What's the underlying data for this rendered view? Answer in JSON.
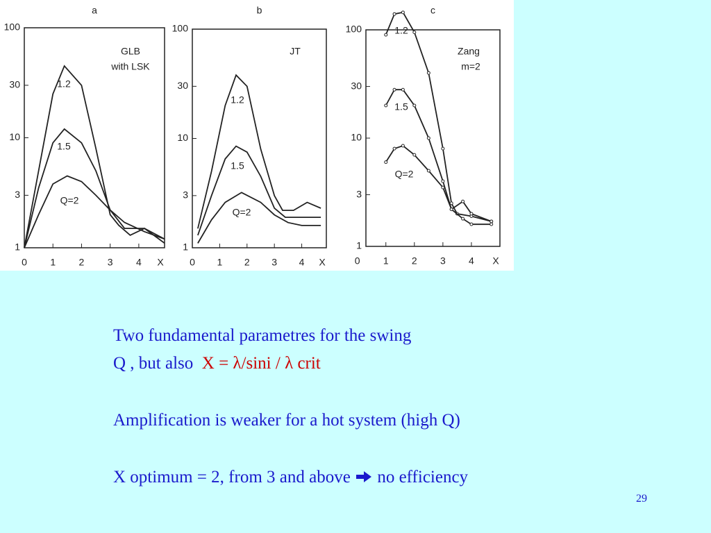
{
  "chart_data": [
    {
      "type": "line",
      "panel": "a",
      "annotations": [
        "GLB",
        "with LSK"
      ],
      "xlabel": "X",
      "log_y": true,
      "color": "#222222",
      "markers": false,
      "xlim": [
        0,
        4.9
      ],
      "xticks": [
        0,
        1,
        2,
        3,
        4
      ],
      "ylim": [
        1,
        100
      ],
      "yticks": [
        1,
        3,
        10,
        30,
        100
      ],
      "series": [
        {
          "name": "1.2",
          "x": [
            0,
            0.5,
            1,
            1.4,
            2,
            2.5,
            3,
            3.3,
            3.7,
            4.2,
            4.9
          ],
          "values": [
            1,
            5,
            25,
            45,
            30,
            8,
            2,
            1.6,
            1.3,
            1.5,
            1.1
          ]
        },
        {
          "name": "1.5",
          "x": [
            0,
            0.5,
            1,
            1.4,
            2,
            2.5,
            3,
            3.5,
            4.2,
            4.9
          ],
          "values": [
            1,
            3.5,
            9,
            12,
            9,
            5,
            2.2,
            1.5,
            1.5,
            1.2
          ]
        },
        {
          "name": "Q=2",
          "x": [
            0,
            0.5,
            1,
            1.5,
            2,
            2.5,
            3,
            3.5,
            4.2,
            4.9
          ],
          "values": [
            1,
            2,
            3.8,
            4.5,
            4,
            3,
            2.2,
            1.7,
            1.4,
            1.2
          ]
        }
      ]
    },
    {
      "type": "line",
      "panel": "b",
      "annotations": [
        "JT"
      ],
      "xlabel": "X",
      "log_y": true,
      "color": "#222222",
      "markers": false,
      "xlim": [
        0,
        4.9
      ],
      "xticks": [
        0,
        1,
        2,
        3,
        4
      ],
      "ylim": [
        1,
        100
      ],
      "yticks": [
        1,
        3,
        10,
        30,
        100
      ],
      "series": [
        {
          "name": "1.2",
          "x": [
            0.2,
            0.7,
            1.2,
            1.6,
            2,
            2.5,
            3,
            3.3,
            3.7,
            4.2,
            4.7
          ],
          "values": [
            1.5,
            5,
            20,
            38,
            30,
            8,
            3,
            2.2,
            2.2,
            2.6,
            2.3
          ]
        },
        {
          "name": "1.5",
          "x": [
            0.2,
            0.7,
            1.2,
            1.6,
            2,
            2.5,
            3,
            3.4,
            4,
            4.7
          ],
          "values": [
            1.3,
            3,
            6.5,
            8.5,
            7.5,
            4.5,
            2.3,
            1.9,
            1.9,
            1.9
          ]
        },
        {
          "name": "Q=2",
          "x": [
            0.2,
            0.7,
            1.2,
            1.8,
            2.5,
            3,
            3.5,
            4,
            4.7
          ],
          "values": [
            1.1,
            1.8,
            2.6,
            3.2,
            2.6,
            2,
            1.7,
            1.6,
            1.6
          ]
        }
      ]
    },
    {
      "type": "line",
      "panel": "c",
      "annotations": [
        "Zang",
        "m=2"
      ],
      "xlabel": "X",
      "log_y": true,
      "color": "#222222",
      "markers": true,
      "xlim": [
        0.3,
        5
      ],
      "xticks": [
        0,
        1,
        2,
        3,
        4
      ],
      "ylim": [
        1,
        100
      ],
      "yticks": [
        1,
        3,
        10,
        30,
        100
      ],
      "series": [
        {
          "name": "1.2",
          "x": [
            1,
            1.3,
            1.6,
            2,
            2.5,
            3,
            3.3,
            3.5,
            4,
            4.7
          ],
          "values": [
            90,
            140,
            145,
            95,
            40,
            8,
            2.5,
            2,
            1.9,
            1.7
          ]
        },
        {
          "name": "1.5",
          "x": [
            1,
            1.3,
            1.6,
            2,
            2.5,
            3,
            3.3,
            3.7,
            4,
            4.7
          ],
          "values": [
            20,
            28,
            28,
            20,
            10,
            4,
            2.2,
            2.6,
            2,
            1.7
          ]
        },
        {
          "name": "Q=2",
          "x": [
            1,
            1.3,
            1.6,
            2,
            2.5,
            3,
            3.3,
            3.7,
            4,
            4.7
          ],
          "values": [
            6,
            8,
            8.5,
            7,
            5,
            3.5,
            2.2,
            1.8,
            1.6,
            1.6
          ]
        }
      ]
    }
  ],
  "text": {
    "line1": "Two fundamental parametres for the swing",
    "line2a": "Q , but also",
    "line2b": "X = λ/sini / λ crit",
    "line3": "Amplification is weaker for a hot system (high Q)",
    "line4a": "X optimum = 2, from 3 and above",
    "line4b": "no efficiency",
    "page": "29"
  }
}
